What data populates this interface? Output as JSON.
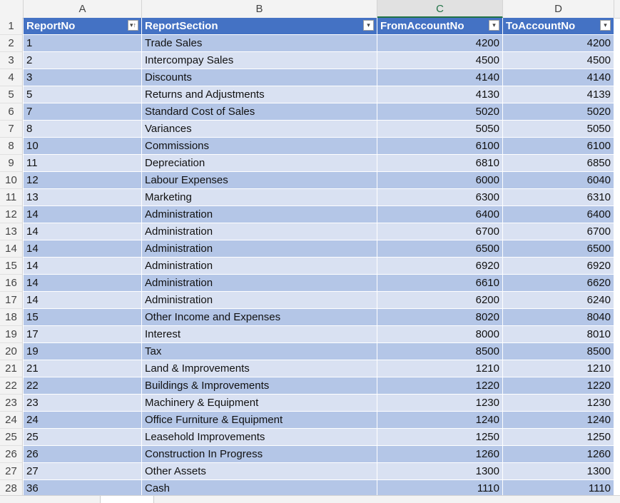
{
  "columns": {
    "letters": [
      "A",
      "B",
      "C",
      "D"
    ],
    "selected": "C"
  },
  "table": {
    "headers": [
      "ReportNo",
      "ReportSection",
      "FromAccountNo",
      "ToAccountNo"
    ],
    "rows": [
      [
        "1",
        "Trade Sales",
        "4200",
        "4200"
      ],
      [
        "2",
        "Intercompay Sales",
        "4500",
        "4500"
      ],
      [
        "3",
        "Discounts",
        "4140",
        "4140"
      ],
      [
        "5",
        "Returns and Adjustments",
        "4130",
        "4139"
      ],
      [
        "7",
        "Standard Cost of Sales",
        "5020",
        "5020"
      ],
      [
        "8",
        "Variances",
        "5050",
        "5050"
      ],
      [
        "10",
        "Commissions",
        "6100",
        "6100"
      ],
      [
        "11",
        "Depreciation",
        "6810",
        "6850"
      ],
      [
        "12",
        "Labour Expenses",
        "6000",
        "6040"
      ],
      [
        "13",
        "Marketing",
        "6300",
        "6310"
      ],
      [
        "14",
        "Administration",
        "6400",
        "6400"
      ],
      [
        "14",
        "Administration",
        "6700",
        "6700"
      ],
      [
        "14",
        "Administration",
        "6500",
        "6500"
      ],
      [
        "14",
        "Administration",
        "6920",
        "6920"
      ],
      [
        "14",
        "Administration",
        "6610",
        "6620"
      ],
      [
        "14",
        "Administration",
        "6200",
        "6240"
      ],
      [
        "15",
        "Other Income and Expenses",
        "8020",
        "8040"
      ],
      [
        "17",
        "Interest",
        "8000",
        "8010"
      ],
      [
        "19",
        "Tax",
        "8500",
        "8500"
      ],
      [
        "21",
        "Land & Improvements",
        "1210",
        "1210"
      ],
      [
        "22",
        "Buildings & Improvements",
        "1220",
        "1220"
      ],
      [
        "23",
        "Machinery & Equipment",
        "1230",
        "1230"
      ],
      [
        "24",
        "Office Furniture & Equipment",
        "1240",
        "1240"
      ],
      [
        "25",
        "Leasehold Improvements",
        "1250",
        "1250"
      ],
      [
        "26",
        "Construction In Progress",
        "1260",
        "1260"
      ],
      [
        "27",
        "Other Assets",
        "1300",
        "1300"
      ],
      [
        "36",
        "Cash",
        "1110",
        "1110"
      ]
    ]
  },
  "colors": {
    "header_fill": "#4472c4",
    "band_dark": "#b4c6e7",
    "band_light": "#d9e1f2",
    "selected_col_accent": "#217346"
  },
  "icons": {
    "sorted_filter": "sort-filter-icon",
    "filter": "filter-dropdown-icon"
  }
}
